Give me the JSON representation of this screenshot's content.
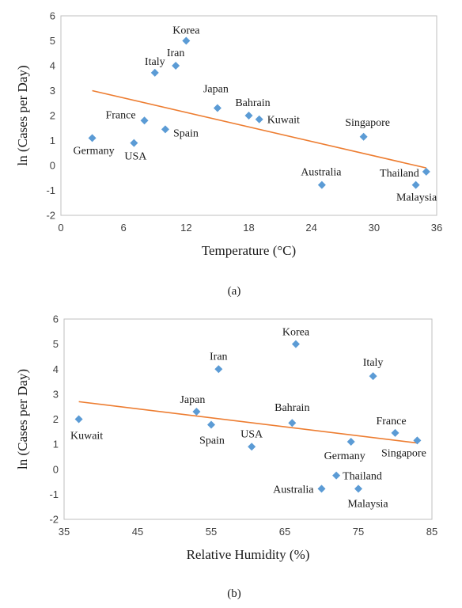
{
  "chart_data": [
    {
      "type": "scatter",
      "caption": "(a)",
      "xlabel": "Temperature (°C)",
      "ylabel": "ln (Cases per Day)",
      "xlim": [
        0,
        36
      ],
      "ylim": [
        -2,
        6
      ],
      "xticks": [
        0,
        6,
        12,
        18,
        24,
        30,
        36
      ],
      "yticks": [
        -2,
        -1,
        0,
        1,
        2,
        3,
        4,
        5,
        6
      ],
      "grid": false,
      "marker_color": "#5b9bd5",
      "trendline_color": "#ed7d31",
      "trendline": {
        "x": [
          3,
          35
        ],
        "y": [
          3.0,
          -0.1
        ]
      },
      "points": [
        {
          "label": "Korea",
          "x": 12,
          "y": 5.0
        },
        {
          "label": "Iran",
          "x": 11,
          "y": 4.0
        },
        {
          "label": "Italy",
          "x": 9,
          "y": 3.72
        },
        {
          "label": "Japan",
          "x": 15,
          "y": 2.3
        },
        {
          "label": "Bahrain",
          "x": 18,
          "y": 2.0
        },
        {
          "label": "Kuwait",
          "x": 19,
          "y": 1.85
        },
        {
          "label": "France",
          "x": 8,
          "y": 1.8
        },
        {
          "label": "Spain",
          "x": 10,
          "y": 1.45
        },
        {
          "label": "Germany",
          "x": 3,
          "y": 1.1
        },
        {
          "label": "USA",
          "x": 7,
          "y": 0.9
        },
        {
          "label": "Singapore",
          "x": 29,
          "y": 1.15
        },
        {
          "label": "Australia",
          "x": 25,
          "y": -0.78
        },
        {
          "label": "Thailand",
          "x": 35,
          "y": -0.25
        },
        {
          "label": "Malaysia",
          "x": 34,
          "y": -0.78
        }
      ]
    },
    {
      "type": "scatter",
      "caption": "(b)",
      "xlabel": "Relative Humidity (%)",
      "ylabel": "ln (Cases per Day)",
      "xlim": [
        35,
        85
      ],
      "ylim": [
        -2,
        6
      ],
      "xticks": [
        35,
        45,
        55,
        65,
        75,
        85
      ],
      "yticks": [
        -2,
        -1,
        0,
        1,
        2,
        3,
        4,
        5,
        6
      ],
      "grid": false,
      "marker_color": "#5b9bd5",
      "trendline_color": "#ed7d31",
      "trendline": {
        "x": [
          37,
          83
        ],
        "y": [
          2.7,
          1.05
        ]
      },
      "points": [
        {
          "label": "Korea",
          "x": 66.5,
          "y": 5.0
        },
        {
          "label": "Iran",
          "x": 56,
          "y": 4.0
        },
        {
          "label": "Italy",
          "x": 77,
          "y": 3.72
        },
        {
          "label": "Japan",
          "x": 53,
          "y": 2.3
        },
        {
          "label": "Bahrain",
          "x": 66,
          "y": 1.85
        },
        {
          "label": "Kuwait",
          "x": 37,
          "y": 2.0
        },
        {
          "label": "Spain",
          "x": 55,
          "y": 1.78
        },
        {
          "label": "USA",
          "x": 60.5,
          "y": 0.9
        },
        {
          "label": "Germany",
          "x": 74,
          "y": 1.1
        },
        {
          "label": "France",
          "x": 80,
          "y": 1.45
        },
        {
          "label": "Singapore",
          "x": 83,
          "y": 1.15
        },
        {
          "label": "Thailand",
          "x": 72,
          "y": -0.25
        },
        {
          "label": "Australia",
          "x": 70,
          "y": -0.78
        },
        {
          "label": "Malaysia",
          "x": 75,
          "y": -0.78
        }
      ]
    }
  ]
}
